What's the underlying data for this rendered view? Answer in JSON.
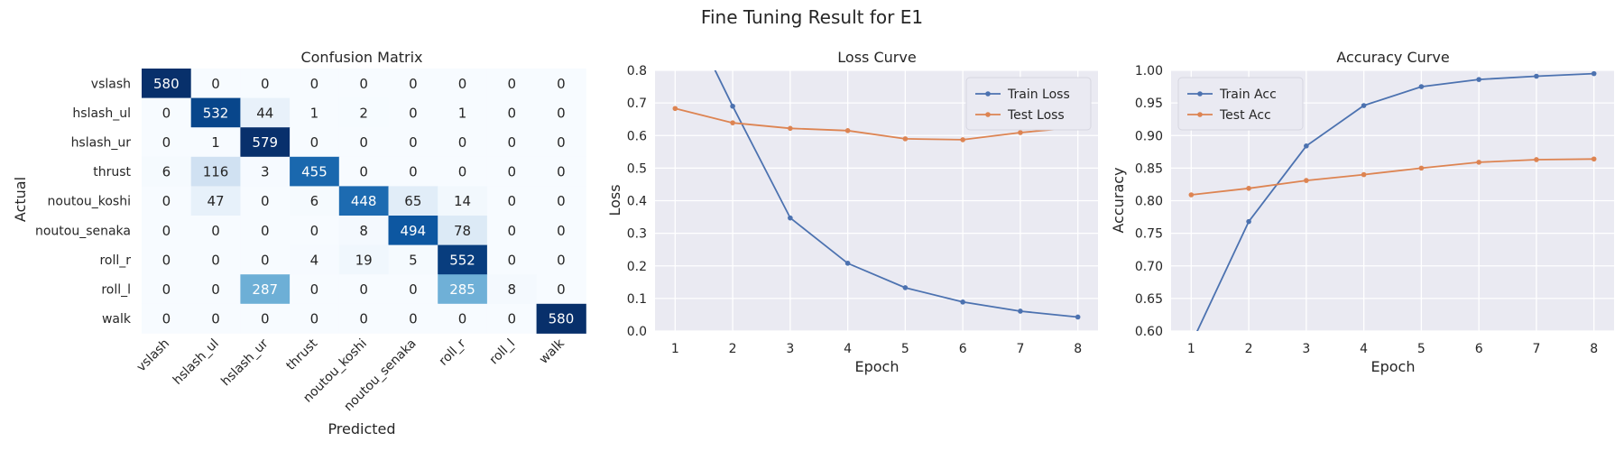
{
  "suptitle": "Fine Tuning Result for E1",
  "chart_data": [
    {
      "type": "heatmap",
      "title": "Confusion Matrix",
      "xlabel": "Predicted",
      "ylabel": "Actual",
      "labels": [
        "vslash",
        "hslash_ul",
        "hslash_ur",
        "thrust",
        "noutou_koshi",
        "noutou_senaka",
        "roll_r",
        "roll_l",
        "walk"
      ],
      "matrix": [
        [
          580,
          0,
          0,
          0,
          0,
          0,
          0,
          0,
          0
        ],
        [
          0,
          532,
          44,
          1,
          2,
          0,
          1,
          0,
          0
        ],
        [
          0,
          1,
          579,
          0,
          0,
          0,
          0,
          0,
          0
        ],
        [
          6,
          116,
          3,
          455,
          0,
          0,
          0,
          0,
          0
        ],
        [
          0,
          47,
          0,
          6,
          448,
          65,
          14,
          0,
          0
        ],
        [
          0,
          0,
          0,
          0,
          8,
          494,
          78,
          0,
          0
        ],
        [
          0,
          0,
          0,
          4,
          19,
          5,
          552,
          0,
          0
        ],
        [
          0,
          0,
          287,
          0,
          0,
          0,
          285,
          8,
          0
        ],
        [
          0,
          0,
          0,
          0,
          0,
          0,
          0,
          0,
          580
        ]
      ],
      "colormap": "Blues",
      "vmin": 0,
      "vmax": 580
    },
    {
      "type": "line",
      "title": "Loss Curve",
      "xlabel": "Epoch",
      "ylabel": "Loss",
      "x": [
        1,
        2,
        3,
        4,
        5,
        6,
        7,
        8
      ],
      "xticks": [
        1,
        2,
        3,
        4,
        5,
        6,
        7,
        8
      ],
      "xlim": [
        0.65,
        8.35
      ],
      "ylim": [
        0,
        0.8
      ],
      "yticks": [
        "0.0",
        "0.1",
        "0.2",
        "0.3",
        "0.4",
        "0.5",
        "0.6",
        "0.7",
        "0.8"
      ],
      "grid": true,
      "legend": "top-right",
      "series": [
        {
          "name": "Train Loss",
          "color": "#4c72b0",
          "values": [
            1.05,
            0.69,
            0.347,
            0.208,
            0.133,
            0.089,
            0.061,
            0.043
          ]
        },
        {
          "name": "Test Loss",
          "color": "#dd8452",
          "values": [
            0.683,
            0.639,
            0.622,
            0.615,
            0.59,
            0.587,
            0.609,
            0.625
          ]
        }
      ]
    },
    {
      "type": "line",
      "title": "Accuracy Curve",
      "xlabel": "Epoch",
      "ylabel": "Accuracy",
      "x": [
        1,
        2,
        3,
        4,
        5,
        6,
        7,
        8
      ],
      "xticks": [
        1,
        2,
        3,
        4,
        5,
        6,
        7,
        8
      ],
      "xlim": [
        0.65,
        8.35
      ],
      "ylim": [
        0.6,
        1.0
      ],
      "yticks": [
        "0.60",
        "0.65",
        "0.70",
        "0.75",
        "0.80",
        "0.85",
        "0.90",
        "0.95",
        "1.00"
      ],
      "grid": true,
      "legend": "top-left",
      "series": [
        {
          "name": "Train Acc",
          "color": "#4c72b0",
          "values": [
            0.58,
            0.768,
            0.884,
            0.946,
            0.975,
            0.986,
            0.991,
            0.995
          ]
        },
        {
          "name": "Test Acc",
          "color": "#dd8452",
          "values": [
            0.809,
            0.819,
            0.831,
            0.84,
            0.85,
            0.859,
            0.863,
            0.864
          ]
        }
      ]
    }
  ]
}
